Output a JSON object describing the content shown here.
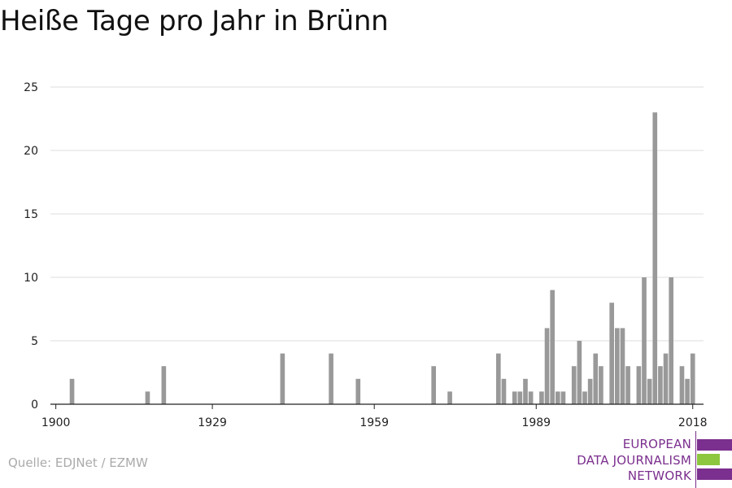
{
  "title": "Heiße Tage pro Jahr in Brünn",
  "source": "Quelle: EDJNet / EZMW",
  "logo": {
    "lines": [
      "EUROPEAN",
      "DATA JOURNALISM",
      "NETWORK"
    ],
    "colors": {
      "purple": "#7b2f8e",
      "green": "#8dc63f"
    }
  },
  "colors": {
    "bar": "#999999",
    "grid": "#dddddd",
    "axis": "#222222"
  },
  "chart_data": {
    "type": "bar",
    "title": "Heiße Tage pro Jahr in Brünn",
    "xlabel": "",
    "ylabel": "",
    "ylim": [
      0,
      25
    ],
    "xlim": [
      1899,
      2020
    ],
    "yticks": [
      0,
      5,
      10,
      15,
      20,
      25
    ],
    "xticks": [
      1900,
      1929,
      1959,
      1989,
      2018
    ],
    "grid": true,
    "x": [
      1903,
      1917,
      1920,
      1942,
      1951,
      1956,
      1970,
      1973,
      1982,
      1983,
      1985,
      1986,
      1987,
      1988,
      1990,
      1991,
      1992,
      1993,
      1994,
      1996,
      1997,
      1998,
      1999,
      2000,
      2001,
      2003,
      2004,
      2005,
      2006,
      2008,
      2009,
      2010,
      2011,
      2012,
      2013,
      2014,
      2016,
      2017,
      2018
    ],
    "values": [
      2,
      1,
      3,
      4,
      4,
      2,
      3,
      1,
      4,
      2,
      1,
      1,
      2,
      1,
      1,
      6,
      9,
      1,
      1,
      3,
      5,
      1,
      2,
      4,
      3,
      8,
      6,
      6,
      3,
      3,
      10,
      2,
      23,
      3,
      4,
      10,
      3,
      2,
      4
    ]
  }
}
